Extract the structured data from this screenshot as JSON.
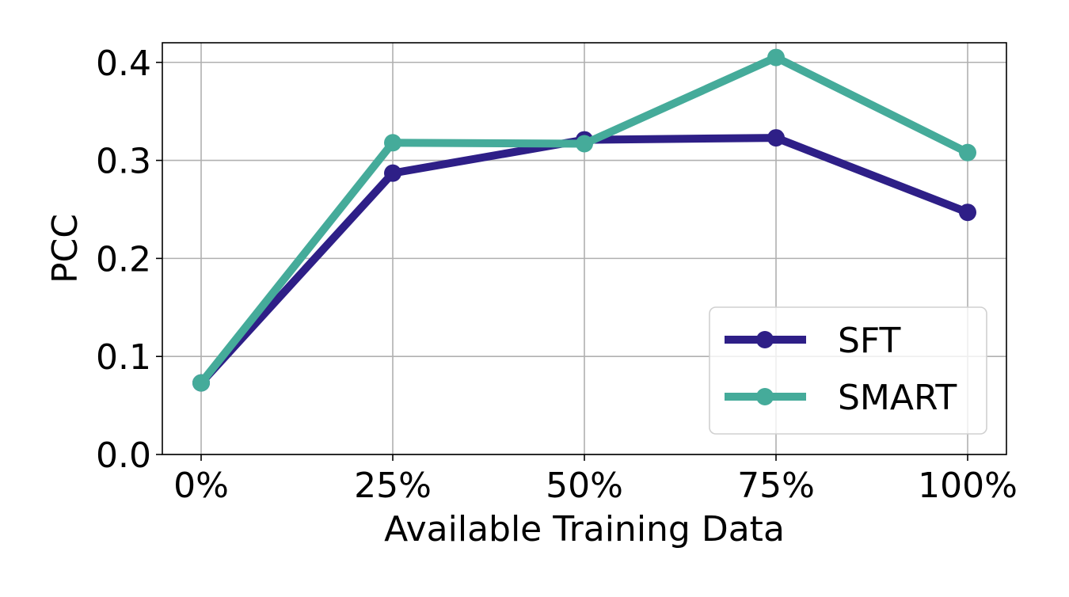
{
  "chart_data": {
    "type": "line",
    "title": "",
    "xlabel": "Available Training Data",
    "ylabel": "PCC",
    "categories": [
      "0%",
      "25%",
      "50%",
      "75%",
      "100%"
    ],
    "ylim": [
      0.0,
      0.42
    ],
    "yticks": [
      0.0,
      0.1,
      0.2,
      0.3,
      0.4
    ],
    "ytick_labels": [
      "0.0",
      "0.1",
      "0.2",
      "0.3",
      "0.4"
    ],
    "grid": true,
    "legend_position": "lower-right",
    "series": [
      {
        "name": "SFT",
        "color": "#2e1f87",
        "values": [
          0.073,
          0.287,
          0.321,
          0.323,
          0.247
        ]
      },
      {
        "name": "SMART",
        "color": "#45ab9a",
        "values": [
          0.073,
          0.318,
          0.317,
          0.405,
          0.308
        ]
      }
    ]
  }
}
